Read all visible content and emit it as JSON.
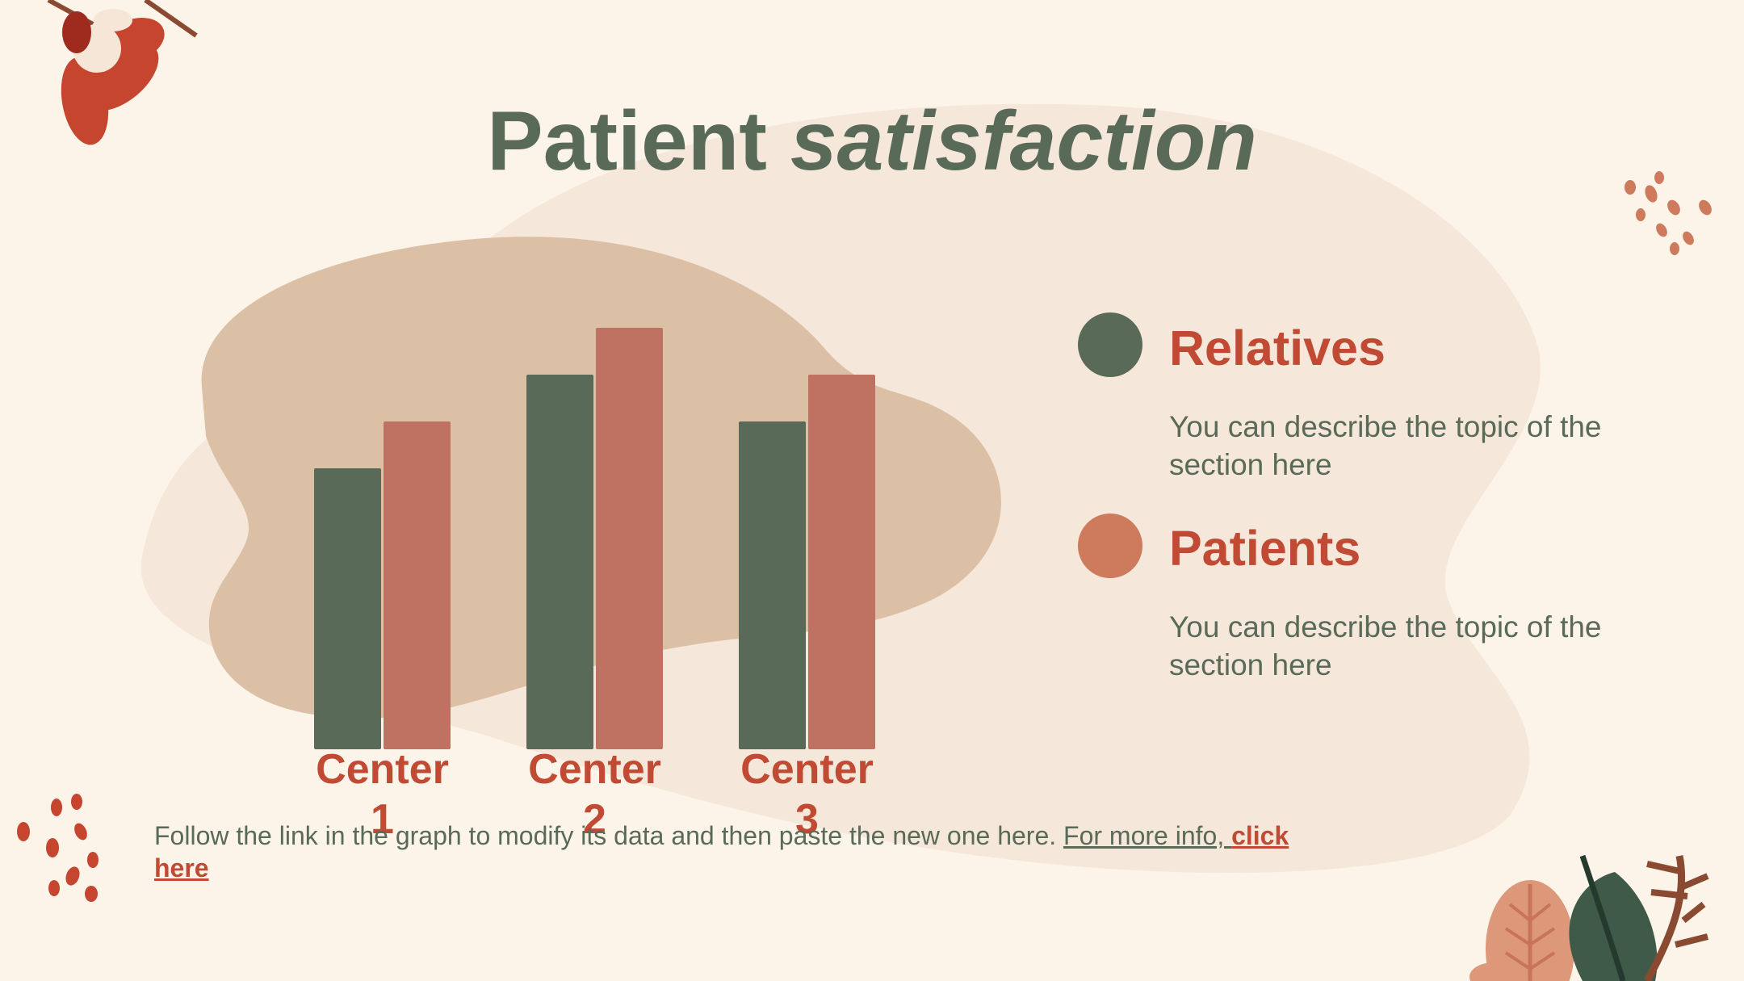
{
  "title": {
    "main": "Patient",
    "emphasis": "satisfaction"
  },
  "colors": {
    "background": "#fcf4e9",
    "relatives": "#5a6a58",
    "patients": "#bf7261",
    "accent": "#c04a33",
    "blob_light": "#f5e8da",
    "blob_dark": "#dcc0a6"
  },
  "legend": [
    {
      "label": "Relatives",
      "description": "You can describe the topic of the section here",
      "dot_color": "#5a6a58"
    },
    {
      "label": "Patients",
      "description": "You can describe the topic of the section here",
      "dot_color": "#cd7a5d"
    }
  ],
  "chart_data": {
    "type": "bar",
    "categories": [
      "Center 1",
      "Center 2",
      "Center 3"
    ],
    "series": [
      {
        "name": "Relatives",
        "values": [
          6,
          8,
          7
        ],
        "color": "#5a6a58"
      },
      {
        "name": "Patients",
        "values": [
          7,
          9,
          8
        ],
        "color": "#bf7261"
      }
    ],
    "ylim": [
      0,
      16
    ],
    "grid": false,
    "legend_placement": "right"
  },
  "footnote": {
    "text": "Follow the link in the graph to modify its data and then paste the new one here. ",
    "info_text": "For more info, ",
    "link_text": "click here"
  }
}
